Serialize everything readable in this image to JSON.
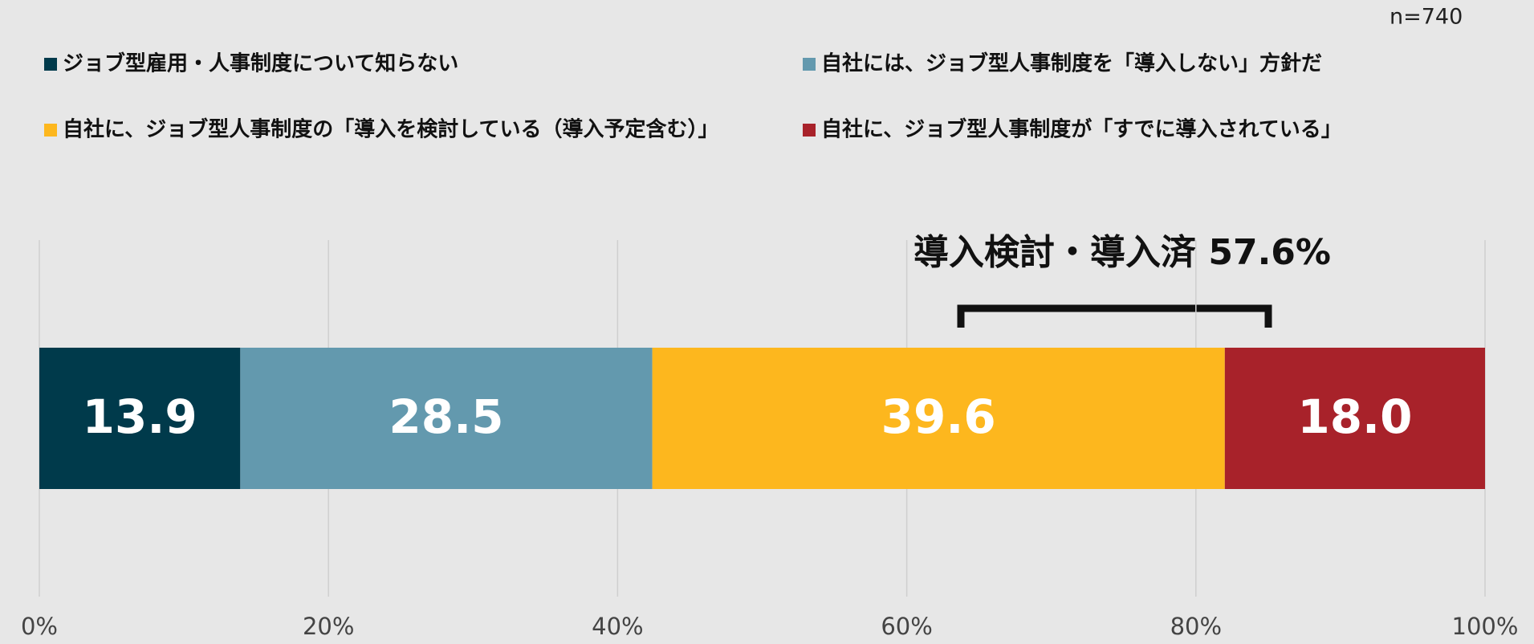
{
  "chart_data": {
    "type": "stacked-bar-horizontal",
    "note": "n=740",
    "annotation": "導入検討・導入済 57.6%",
    "series": [
      {
        "name": "ジョブ型雇用・人事制度について知らない",
        "color": "#003a4b",
        "values": [
          13.9
        ]
      },
      {
        "name": "自社には、ジョブ型人事制度を「導入しない」方針だ",
        "color": "#6399ae",
        "values": [
          28.5
        ]
      },
      {
        "name": "自社に、ジョブ型人事制度の「導入を検討している（導入予定含む）」",
        "color": "#fdb71e",
        "values": [
          39.6
        ]
      },
      {
        "name": "自社に、ジョブ型人事制度が「すでに導入されている」",
        "color": "#a8222a",
        "values": [
          18
        ],
        "value_labels": [
          "18.0"
        ]
      }
    ],
    "xlim": [
      0,
      100
    ],
    "xticks": [
      {
        "value": 0,
        "label": "0%"
      },
      {
        "value": 20,
        "label": "20%"
      },
      {
        "value": 40,
        "label": "40%"
      },
      {
        "value": 60,
        "label": "60%"
      },
      {
        "value": 80,
        "label": "80%"
      },
      {
        "value": 100,
        "label": "100%"
      }
    ],
    "grid": true
  }
}
